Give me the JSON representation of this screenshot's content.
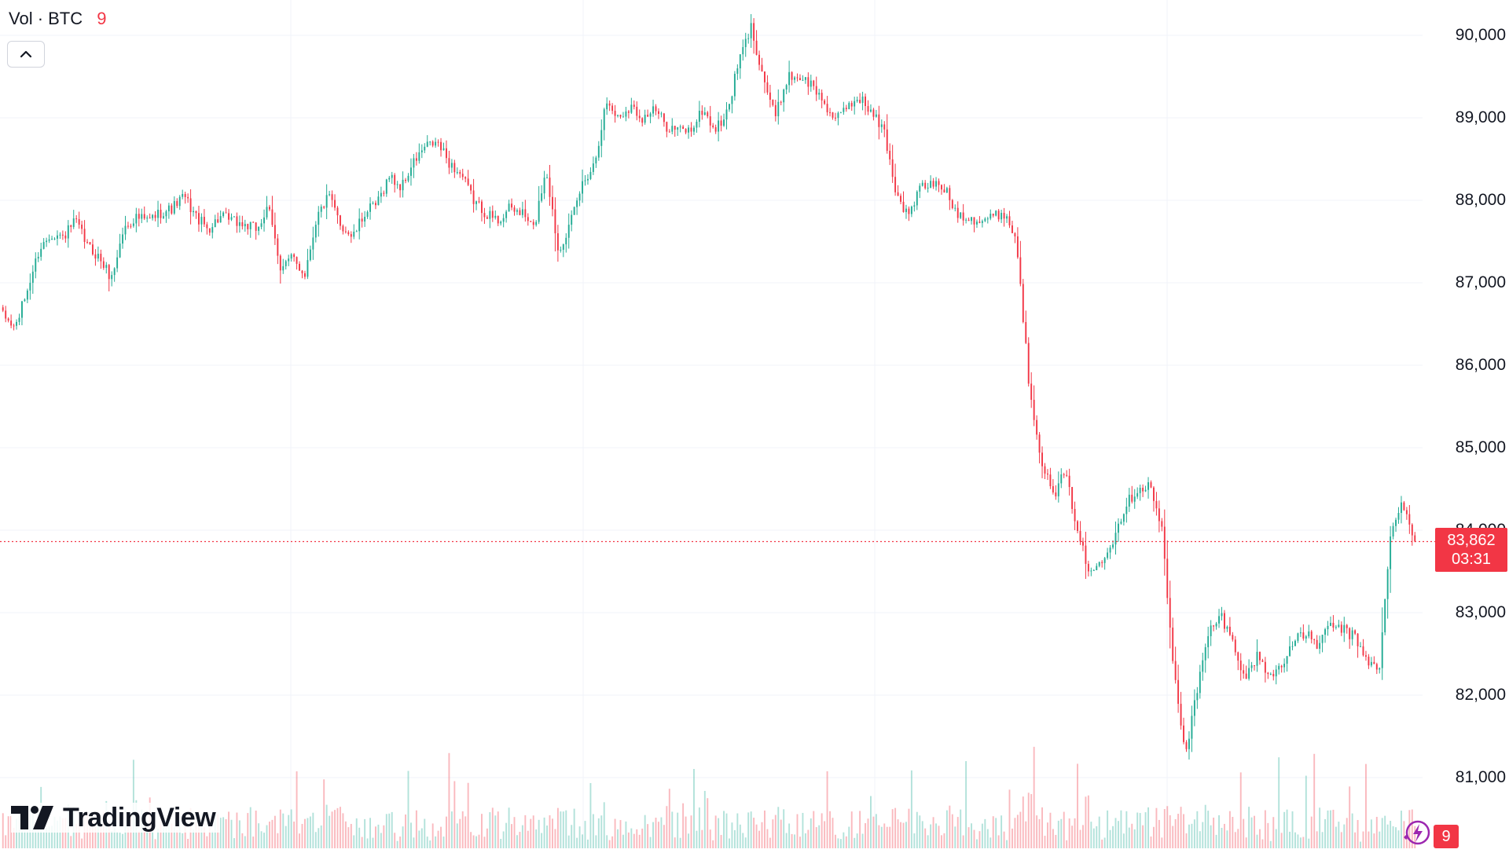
{
  "legend": {
    "series_label": "Vol · BTC",
    "series_value": "9"
  },
  "price_axis": {
    "labels": [
      "90,000",
      "89,000",
      "88,000",
      "87,000",
      "86,000",
      "85,000",
      "84,000",
      "83,000",
      "82,000",
      "81,000"
    ]
  },
  "last_price": {
    "price": "83,862",
    "countdown": "03:31",
    "value": 83862
  },
  "branding": {
    "logo_text": "TradingView"
  },
  "alerts": {
    "count": "9"
  },
  "colors": {
    "up": "#22ab94",
    "down": "#f23645",
    "grid": "#f0f3fa",
    "price_line": "#f23645"
  },
  "chart_data": {
    "type": "candlestick",
    "title": "",
    "xlabel": "",
    "ylabel": "",
    "ylim": [
      80200,
      90450
    ],
    "grid": true,
    "y_ticks": [
      81000,
      82000,
      83000,
      84000,
      85000,
      86000,
      87000,
      88000,
      89000,
      90000
    ],
    "last_price": 83862,
    "price_path": [
      [
        0,
        86600
      ],
      [
        1,
        86450
      ],
      [
        2,
        86900
      ],
      [
        3,
        87400
      ],
      [
        4,
        87600
      ],
      [
        5,
        87550
      ],
      [
        6,
        87750
      ],
      [
        7,
        87450
      ],
      [
        8,
        87300
      ],
      [
        9,
        87050
      ],
      [
        10,
        87650
      ],
      [
        11,
        87800
      ],
      [
        12,
        87750
      ],
      [
        13,
        87850
      ],
      [
        14,
        87900
      ],
      [
        15,
        88050
      ],
      [
        16,
        87800
      ],
      [
        17,
        87650
      ],
      [
        18,
        87800
      ],
      [
        19,
        87750
      ],
      [
        20,
        87700
      ],
      [
        21,
        87650
      ],
      [
        22,
        87900
      ],
      [
        23,
        87200
      ],
      [
        24,
        87300
      ],
      [
        25,
        87100
      ],
      [
        26,
        87800
      ],
      [
        27,
        88050
      ],
      [
        28,
        87700
      ],
      [
        29,
        87550
      ],
      [
        30,
        87850
      ],
      [
        31,
        87950
      ],
      [
        32,
        88300
      ],
      [
        33,
        88150
      ],
      [
        34,
        88450
      ],
      [
        35,
        88650
      ],
      [
        36,
        88700
      ],
      [
        37,
        88450
      ],
      [
        38,
        88300
      ],
      [
        39,
        88000
      ],
      [
        40,
        87850
      ],
      [
        41,
        87750
      ],
      [
        42,
        87900
      ],
      [
        43,
        87850
      ],
      [
        44,
        87650
      ],
      [
        45,
        88400
      ],
      [
        46,
        87400
      ],
      [
        47,
        87700
      ],
      [
        48,
        88200
      ],
      [
        49,
        88450
      ],
      [
        50,
        89200
      ],
      [
        51,
        89000
      ],
      [
        52,
        89150
      ],
      [
        53,
        89000
      ],
      [
        54,
        89100
      ],
      [
        55,
        88900
      ],
      [
        56,
        88850
      ],
      [
        57,
        88850
      ],
      [
        58,
        89100
      ],
      [
        59,
        88850
      ],
      [
        60,
        89050
      ],
      [
        61,
        89700
      ],
      [
        62,
        90100
      ],
      [
        63,
        89500
      ],
      [
        64,
        89000
      ],
      [
        65,
        89500
      ],
      [
        66,
        89500
      ],
      [
        67,
        89400
      ],
      [
        68,
        89200
      ],
      [
        69,
        88950
      ],
      [
        70,
        89150
      ],
      [
        71,
        89250
      ],
      [
        72,
        89050
      ],
      [
        73,
        88850
      ],
      [
        74,
        88100
      ],
      [
        75,
        87800
      ],
      [
        76,
        88150
      ],
      [
        77,
        88200
      ],
      [
        78,
        88150
      ],
      [
        79,
        87850
      ],
      [
        80,
        87800
      ],
      [
        81,
        87750
      ],
      [
        82,
        87800
      ],
      [
        83,
        87850
      ],
      [
        84,
        87500
      ],
      [
        85,
        85800
      ],
      [
        86,
        84900
      ],
      [
        87,
        84400
      ],
      [
        88,
        84700
      ],
      [
        89,
        84050
      ],
      [
        90,
        83450
      ],
      [
        91,
        83650
      ],
      [
        92,
        83900
      ],
      [
        93,
        84300
      ],
      [
        94,
        84500
      ],
      [
        95,
        84550
      ],
      [
        96,
        84050
      ],
      [
        97,
        82300
      ],
      [
        98,
        81300
      ],
      [
        99,
        82100
      ],
      [
        100,
        82800
      ],
      [
        101,
        82950
      ],
      [
        102,
        82600
      ],
      [
        103,
        82200
      ],
      [
        104,
        82500
      ],
      [
        105,
        82200
      ],
      [
        106,
        82400
      ],
      [
        107,
        82650
      ],
      [
        108,
        82750
      ],
      [
        109,
        82600
      ],
      [
        110,
        82850
      ],
      [
        111,
        82800
      ],
      [
        112,
        82700
      ],
      [
        113,
        82450
      ],
      [
        114,
        82250
      ],
      [
        115,
        83950
      ],
      [
        116,
        84350
      ],
      [
        117,
        83862
      ]
    ]
  }
}
